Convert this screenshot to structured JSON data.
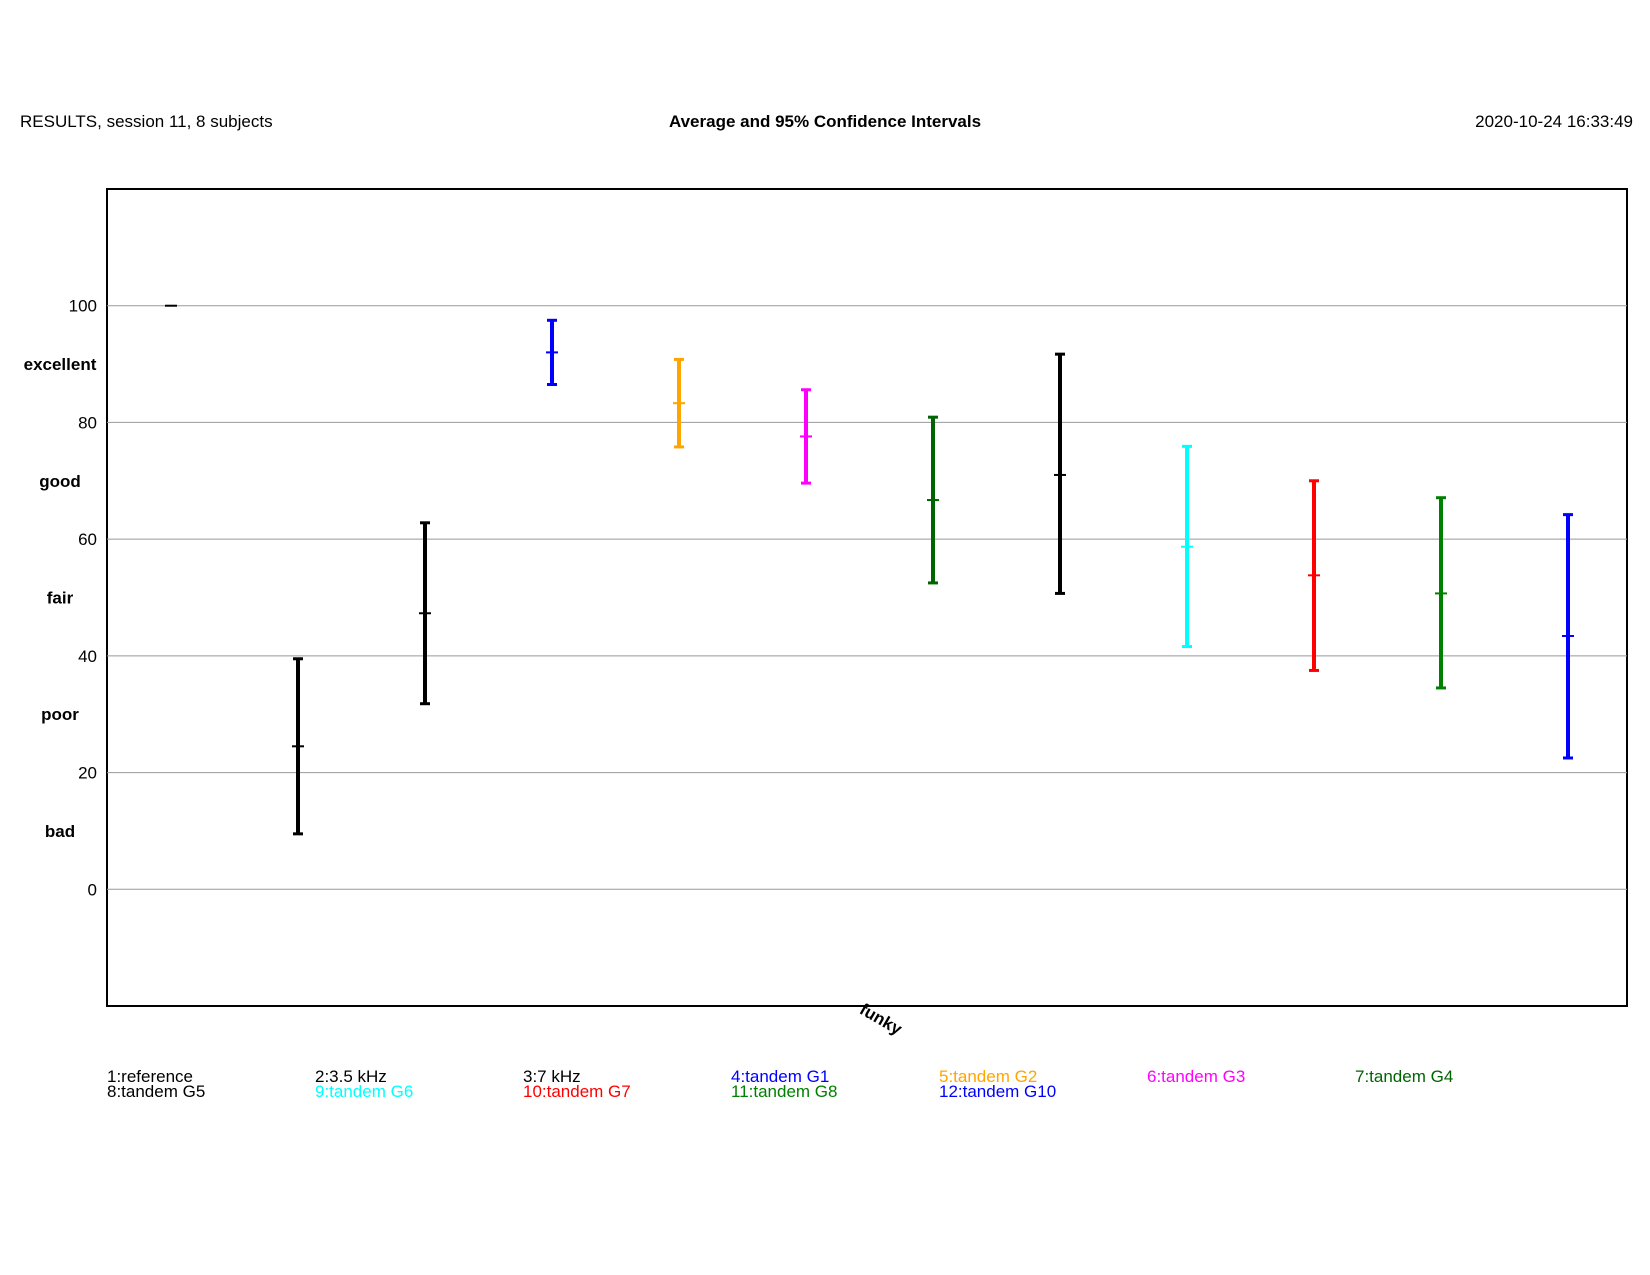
{
  "header": {
    "left": "RESULTS,  session 11,  8 subjects",
    "center": "Average and 95% Confidence Intervals",
    "right": "2020-10-24 16:33:49"
  },
  "chart_data": {
    "type": "errorbar",
    "title": "Average and 95% Confidence Intervals",
    "xlabel": "funky",
    "ylabel": "",
    "ylim": [
      -20,
      120
    ],
    "yticks": [
      0,
      20,
      40,
      60,
      80,
      100
    ],
    "quality_labels": [
      {
        "label": "excellent",
        "value": 90
      },
      {
        "label": "good",
        "value": 70
      },
      {
        "label": "fair",
        "value": 50
      },
      {
        "label": "poor",
        "value": 30
      },
      {
        "label": "bad",
        "value": 10
      }
    ],
    "grid": true,
    "series": [
      {
        "name": "1:reference",
        "color": "#000000",
        "mean": 100,
        "low": 100,
        "high": 100
      },
      {
        "name": "2:3.5 kHz",
        "color": "#000000",
        "mean": 24.5,
        "low": 9.5,
        "high": 39.5
      },
      {
        "name": "3:7 kHz",
        "color": "#000000",
        "mean": 47.3,
        "low": 31.8,
        "high": 62.8
      },
      {
        "name": "4:tandem G1",
        "color": "#0000ff",
        "mean": 92,
        "low": 86.5,
        "high": 97.5
      },
      {
        "name": "5:tandem G2",
        "color": "#ffa500",
        "mean": 83.3,
        "low": 75.8,
        "high": 90.8
      },
      {
        "name": "6:tandem G3",
        "color": "#ff00ff",
        "mean": 77.6,
        "low": 69.6,
        "high": 85.6
      },
      {
        "name": "7:tandem G4",
        "color": "#006400",
        "mean": 66.7,
        "low": 52.5,
        "high": 80.9
      },
      {
        "name": "8:tandem G5",
        "color": "#000000",
        "mean": 71,
        "low": 50.7,
        "high": 91.7
      },
      {
        "name": "9:tandem G6",
        "color": "#00ffff",
        "mean": 58.7,
        "low": 41.6,
        "high": 75.9
      },
      {
        "name": "10:tandem G7",
        "color": "#ff0000",
        "mean": 53.8,
        "low": 37.5,
        "high": 70
      },
      {
        "name": "11:tandem G8",
        "color": "#008000",
        "mean": 50.7,
        "low": 34.5,
        "high": 67.1
      },
      {
        "name": "12:tandem G10",
        "color": "#0000ff",
        "mean": 43.4,
        "low": 22.5,
        "high": 64.2
      }
    ]
  }
}
